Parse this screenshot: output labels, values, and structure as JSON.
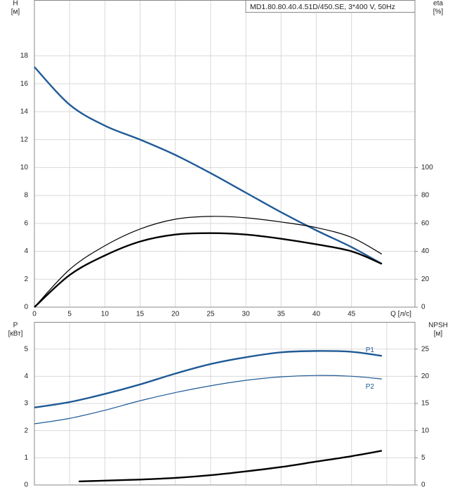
{
  "chart_data": [
    {
      "type": "line",
      "title": "MD1.80.80.40.4.51D/450.SE, 3*400 V, 50Hz",
      "y_label": [
        "H",
        "[м]"
      ],
      "y2_label": [
        "eta",
        "[%]"
      ],
      "x_label": "Q [л/с]",
      "xlim": [
        0,
        54
      ],
      "xticks": [
        0,
        5,
        10,
        15,
        20,
        25,
        30,
        35,
        40,
        45
      ],
      "ylim": [
        0,
        22
      ],
      "yticks": [
        0,
        2,
        4,
        6,
        8,
        10,
        12,
        14,
        16,
        18
      ],
      "y2lim": [
        0,
        220
      ],
      "y2ticks": [
        0,
        20,
        40,
        60,
        80,
        100
      ],
      "grid": true,
      "series": [
        {
          "color": "#1f5a96",
          "style": "thick",
          "x": [
            0,
            5,
            10,
            15,
            20,
            25,
            30,
            35,
            40,
            45,
            49.3
          ],
          "values": [
            17.2,
            14.5,
            13.0,
            12.0,
            10.9,
            9.6,
            8.2,
            6.8,
            5.5,
            4.3,
            3.1
          ]
        },
        {
          "color": "#000000",
          "style": "thin",
          "axis": "y2",
          "x": [
            0,
            5,
            10,
            15,
            20,
            25,
            30,
            35,
            40,
            45,
            49.3
          ],
          "values": [
            0,
            27,
            44,
            56,
            63,
            65,
            64,
            61,
            57,
            50,
            38
          ]
        },
        {
          "color": "#000000",
          "style": "thick",
          "axis": "y2",
          "x": [
            0,
            5,
            10,
            15,
            20,
            25,
            30,
            35,
            40,
            45,
            49.3
          ],
          "values": [
            0,
            23,
            37,
            47,
            52,
            53,
            52,
            49,
            45,
            40,
            31
          ]
        }
      ]
    },
    {
      "type": "line",
      "y_label": [
        "P",
        "[кВт]"
      ],
      "y2_label": [
        "NPSH",
        "[м]"
      ],
      "xlim": [
        0,
        54
      ],
      "xgrid": [
        0,
        5,
        10,
        15,
        20,
        25,
        30,
        35,
        40,
        45,
        50
      ],
      "ylim": [
        0,
        6
      ],
      "yticks": [
        0,
        1,
        2,
        3,
        4,
        5
      ],
      "y2lim": [
        0,
        30
      ],
      "y2ticks": [
        0,
        5,
        10,
        15,
        20,
        25
      ],
      "grid": true,
      "series": [
        {
          "name": "P1",
          "color": "#1f5a96",
          "style": "thick",
          "x": [
            0,
            5,
            10,
            15,
            20,
            25,
            30,
            35,
            40,
            45,
            49.3
          ],
          "values": [
            2.85,
            3.05,
            3.35,
            3.7,
            4.1,
            4.45,
            4.7,
            4.88,
            4.93,
            4.9,
            4.75
          ]
        },
        {
          "name": "P2",
          "color": "#1f5a96",
          "style": "thin",
          "x": [
            0,
            5,
            10,
            15,
            20,
            25,
            30,
            35,
            40,
            45,
            49.3
          ],
          "values": [
            2.25,
            2.45,
            2.75,
            3.1,
            3.4,
            3.65,
            3.85,
            3.98,
            4.03,
            4.0,
            3.9
          ]
        },
        {
          "color": "#000000",
          "style": "thick",
          "axis": "y2",
          "x": [
            6.3,
            10,
            15,
            20,
            25,
            30,
            35,
            40,
            45,
            49.3
          ],
          "values": [
            0.65,
            0.8,
            1.0,
            1.3,
            1.8,
            2.5,
            3.3,
            4.3,
            5.3,
            6.3
          ]
        }
      ]
    }
  ]
}
